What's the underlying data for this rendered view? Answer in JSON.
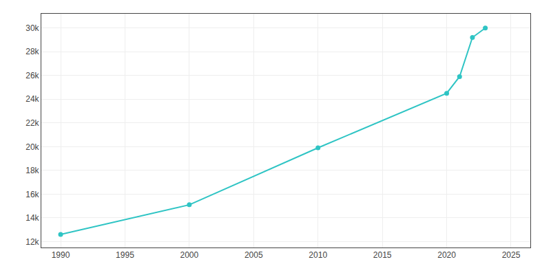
{
  "chart_data": {
    "type": "line",
    "x": [
      1990,
      2000,
      2010,
      2020,
      2021,
      2022,
      2023
    ],
    "values": [
      12600,
      15100,
      19900,
      24500,
      25900,
      29200,
      30000
    ],
    "color": "#2EC4C4",
    "marker": "circle",
    "xlim": [
      1988.5,
      2026.5
    ],
    "xticks": [
      1990,
      1995,
      2000,
      2005,
      2010,
      2015,
      2020,
      2025
    ],
    "ylim": [
      11500,
      31200
    ],
    "yticks": [
      {
        "value": 12000,
        "label": "12k"
      },
      {
        "value": 14000,
        "label": "14k"
      },
      {
        "value": 16000,
        "label": "16k"
      },
      {
        "value": 18000,
        "label": "18k"
      },
      {
        "value": 20000,
        "label": "20k"
      },
      {
        "value": 22000,
        "label": "22k"
      },
      {
        "value": 24000,
        "label": "24k"
      },
      {
        "value": 26000,
        "label": "26k"
      },
      {
        "value": 28000,
        "label": "28k"
      },
      {
        "value": 30000,
        "label": "30k"
      }
    ],
    "grid": true
  }
}
